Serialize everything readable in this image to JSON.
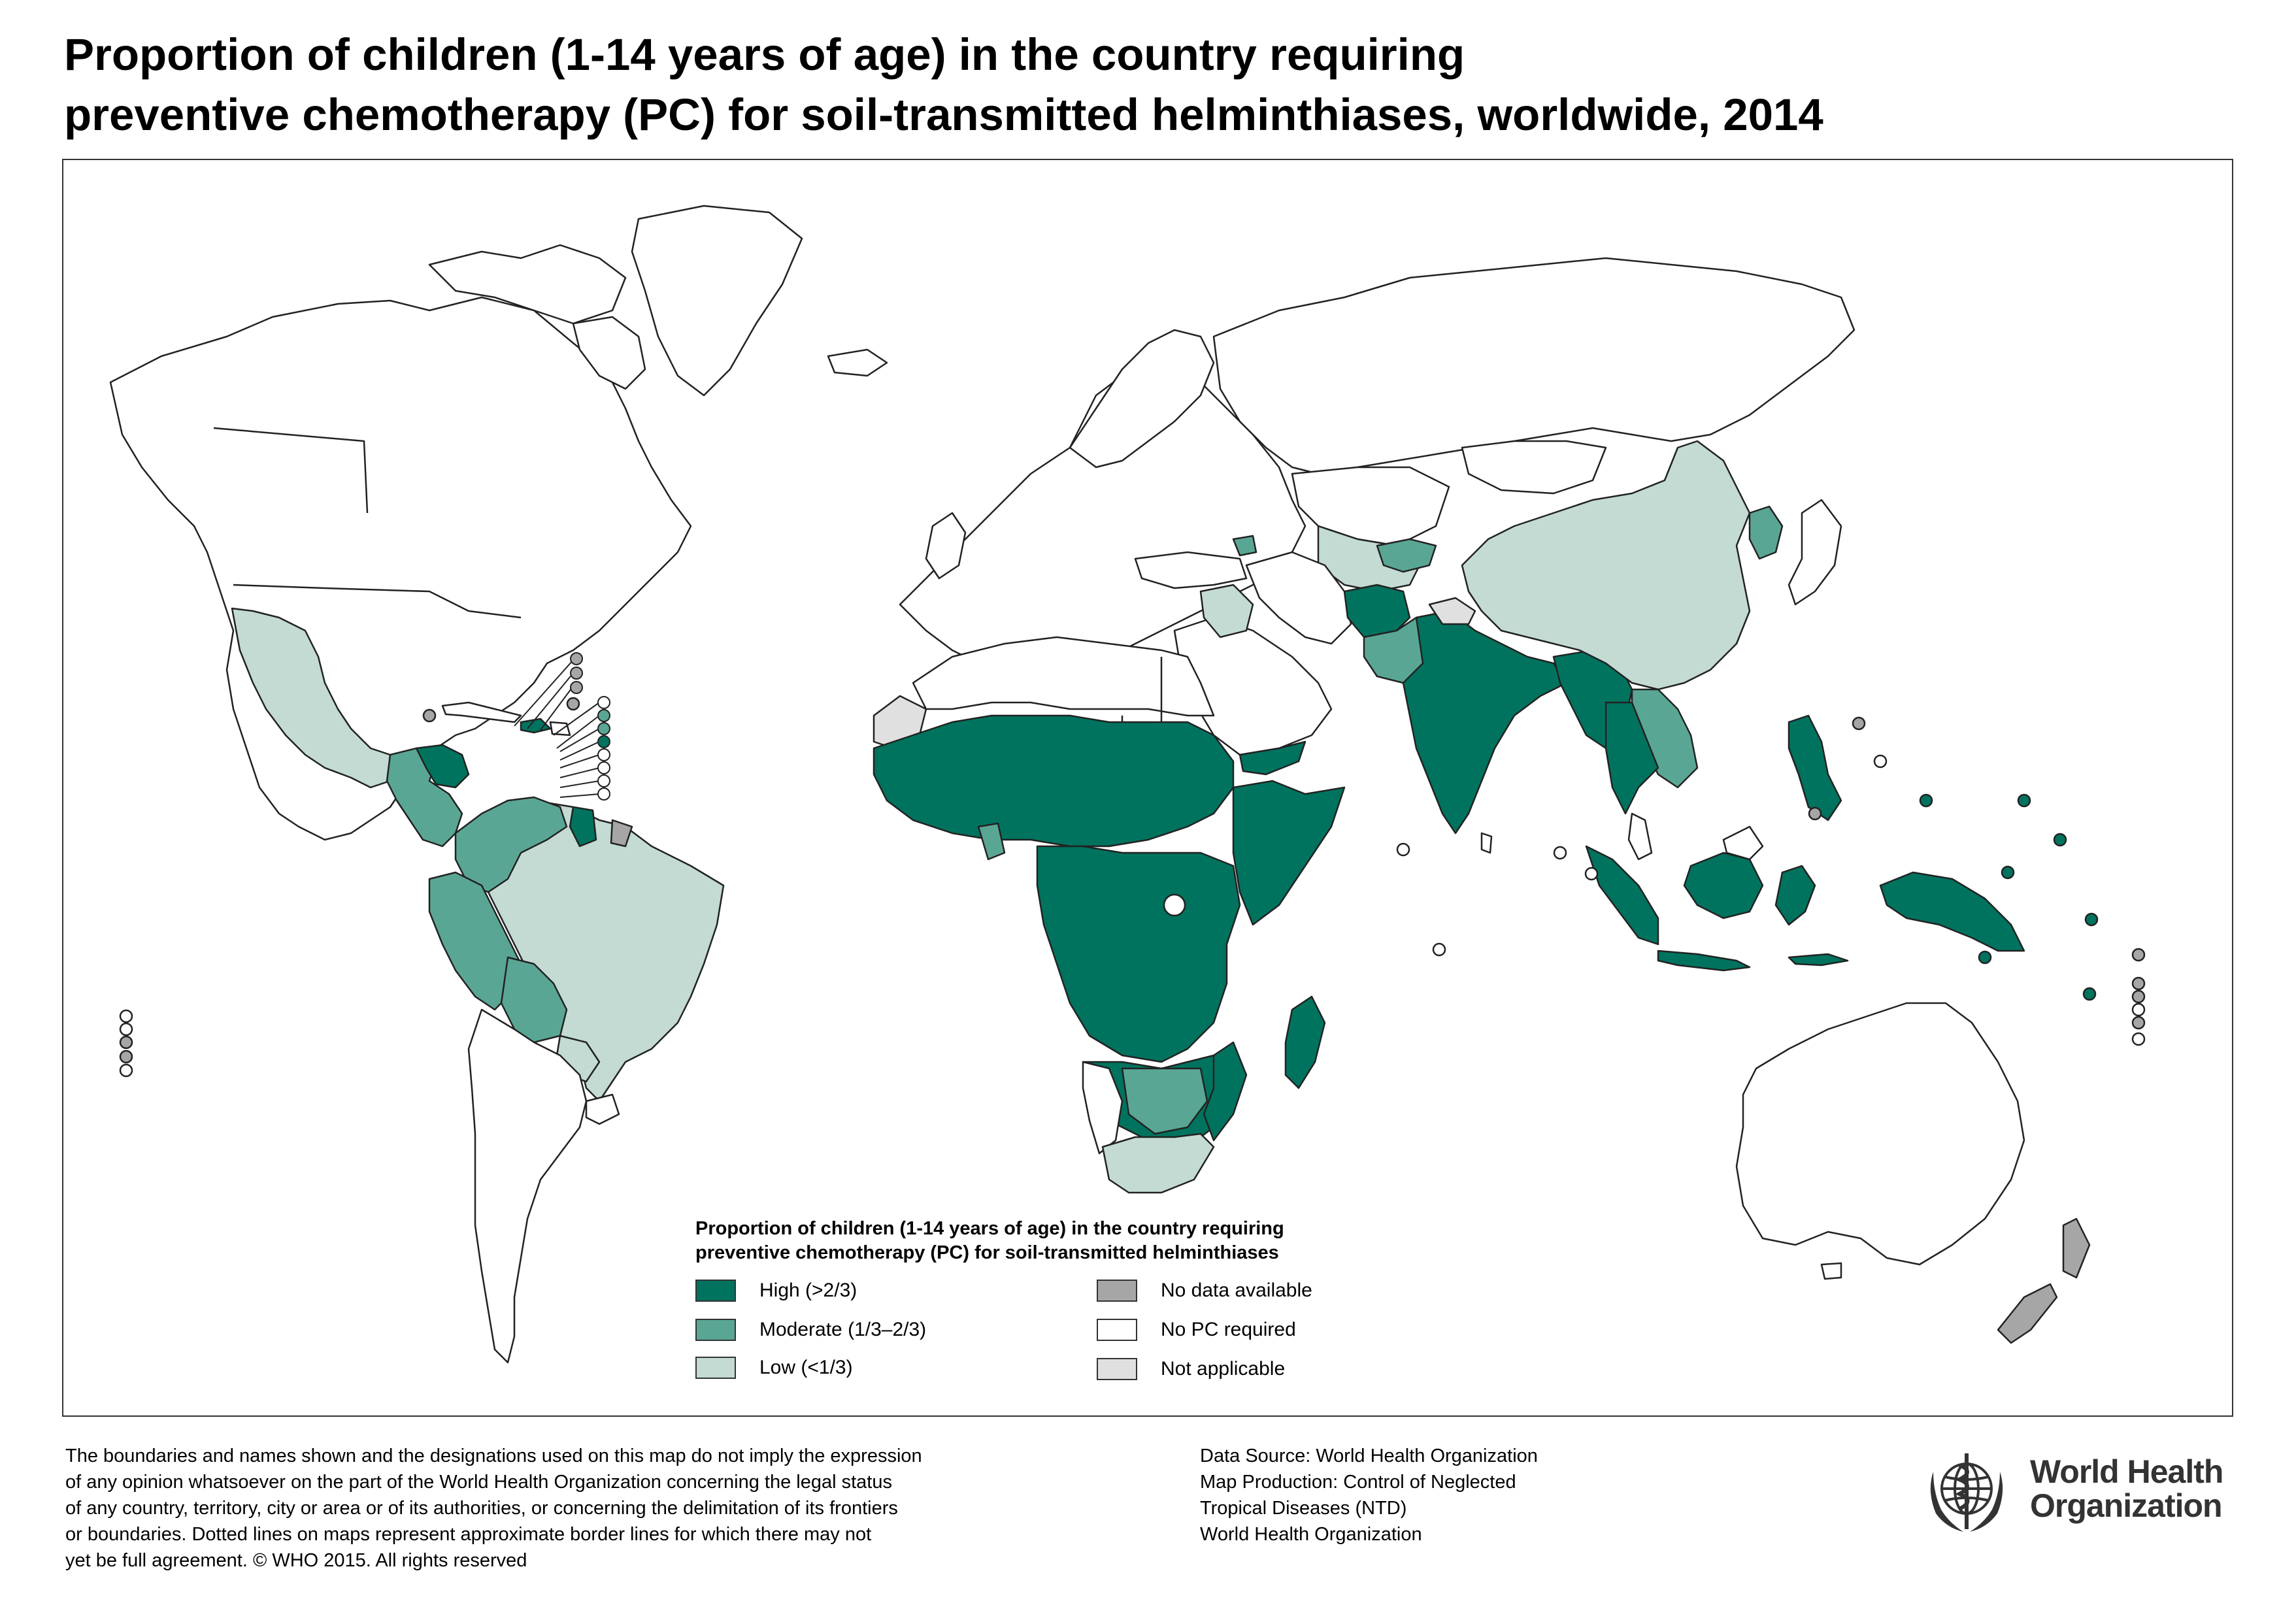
{
  "title": {
    "line1": "Proportion of children (1-14 years of age) in the country requiring",
    "line2": "preventive chemotherapy (PC) for soil-transmitted helminthiases, worldwide, 2014"
  },
  "legend": {
    "title_line1": "Proportion of children (1-14 years of age) in the country requiring",
    "title_line2": "preventive chemotherapy (PC) for soil-transmitted helminthiases",
    "items": [
      {
        "label": "High (>2/3)",
        "color": "#00735f"
      },
      {
        "label": "Moderate (1/3–2/3)",
        "color": "#5aa695"
      },
      {
        "label": "Low (<1/3)",
        "color": "#c3dbd3"
      },
      {
        "label": "No data available",
        "color": "#a6a6a6"
      },
      {
        "label": "No PC required",
        "color": "#ffffff"
      },
      {
        "label": "Not applicable",
        "color": "#e0e0e0"
      }
    ]
  },
  "disclaimer": {
    "line1": "The boundaries and names shown and the designations used on this map do not imply the expression",
    "line2": "of any opinion whatsoever on the part of the World Health Organization concerning the legal status",
    "line3": "of any country, territory, city or area or of its authorities, or concerning the delimitation of its frontiers",
    "line4": "or boundaries. Dotted lines on maps represent approximate border lines for which there may not",
    "line5": "yet be full agreement. © WHO 2015. All rights reserved"
  },
  "source": {
    "line1": "Data Source: World Health Organization",
    "line2": "Map Production: Control of Neglected",
    "line3": "Tropical Diseases (NTD)",
    "line4": "World Health Organization"
  },
  "logo": {
    "line1": "World Health",
    "line2": "Organization",
    "icon": "who-emblem-icon"
  },
  "colors": {
    "high": "#00735f",
    "moderate": "#5aa695",
    "low": "#c3dbd3",
    "no_data": "#a6a6a6",
    "no_pc": "#ffffff",
    "not_applicable": "#e0e0e0",
    "border": "#222222"
  }
}
